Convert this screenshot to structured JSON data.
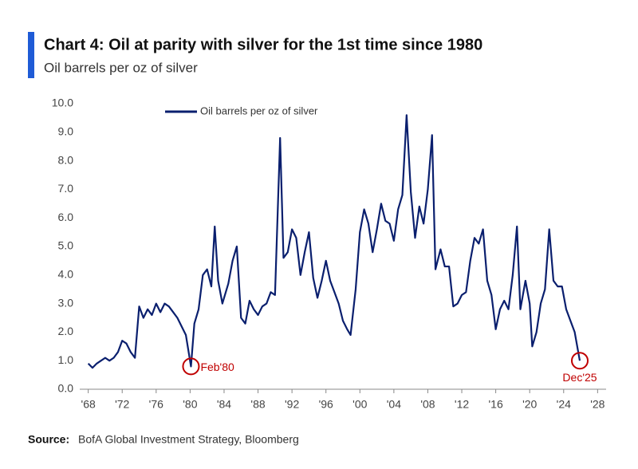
{
  "chart_data": {
    "type": "line",
    "title": "Chart 4: Oil at parity with silver for the 1st time since 1980",
    "subtitle": "Oil barrels per oz of silver",
    "source_label": "Source:",
    "source": "BofA Global Investment Strategy, Bloomberg",
    "legend": "top-center",
    "xlim": [
      1967,
      2029
    ],
    "ylim": [
      0,
      10
    ],
    "xticks": [
      {
        "value": 1968,
        "label": "'68"
      },
      {
        "value": 1972,
        "label": "'72"
      },
      {
        "value": 1976,
        "label": "'76"
      },
      {
        "value": 1980,
        "label": "'80"
      },
      {
        "value": 1984,
        "label": "'84"
      },
      {
        "value": 1988,
        "label": "'88"
      },
      {
        "value": 1992,
        "label": "'92"
      },
      {
        "value": 1996,
        "label": "'96"
      },
      {
        "value": 2000,
        "label": "'00"
      },
      {
        "value": 2004,
        "label": "'04"
      },
      {
        "value": 2008,
        "label": "'08"
      },
      {
        "value": 2012,
        "label": "'12"
      },
      {
        "value": 2016,
        "label": "'16"
      },
      {
        "value": 2020,
        "label": "'20"
      },
      {
        "value": 2024,
        "label": "'24"
      },
      {
        "value": 2028,
        "label": "'28"
      }
    ],
    "yticks": [
      {
        "value": 0,
        "label": "0.0"
      },
      {
        "value": 1,
        "label": "1.0"
      },
      {
        "value": 2,
        "label": "2.0"
      },
      {
        "value": 3,
        "label": "3.0"
      },
      {
        "value": 4,
        "label": "4.0"
      },
      {
        "value": 5,
        "label": "5.0"
      },
      {
        "value": 6,
        "label": "6.0"
      },
      {
        "value": 7,
        "label": "7.0"
      },
      {
        "value": 8,
        "label": "8.0"
      },
      {
        "value": 9,
        "label": "9.0"
      },
      {
        "value": 10,
        "label": "10.0"
      }
    ],
    "x": [
      1968,
      1968.5,
      1969,
      1969.5,
      1970,
      1970.5,
      1971,
      1971.5,
      1972,
      1972.5,
      1973,
      1973.5,
      1974,
      1974.5,
      1975,
      1975.5,
      1976,
      1976.5,
      1977,
      1977.5,
      1978,
      1978.5,
      1979,
      1979.5,
      1980.1,
      1980.5,
      1981,
      1981.5,
      1982,
      1982.5,
      1982.9,
      1983.3,
      1983.8,
      1984.5,
      1985,
      1985.5,
      1986,
      1986.5,
      1987,
      1987.5,
      1988,
      1988.5,
      1989,
      1989.5,
      1990,
      1990.6,
      1991,
      1991.5,
      1992,
      1992.5,
      1993,
      1993.5,
      1994,
      1994.5,
      1995,
      1995.5,
      1996,
      1996.5,
      1997,
      1997.5,
      1998,
      1998.5,
      1998.9,
      1999.5,
      2000,
      2000.5,
      2001,
      2001.5,
      2002,
      2002.5,
      2003,
      2003.5,
      2004,
      2004.5,
      2005,
      2005.5,
      2006,
      2006.5,
      2007,
      2007.5,
      2008,
      2008.5,
      2008.9,
      2009.5,
      2010,
      2010.5,
      2011,
      2011.5,
      2012,
      2012.5,
      2013,
      2013.5,
      2014,
      2014.5,
      2015,
      2015.5,
      2016,
      2016.5,
      2017,
      2017.5,
      2018,
      2018.5,
      2018.9,
      2019.5,
      2020,
      2020.3,
      2020.8,
      2021.3,
      2021.8,
      2022.3,
      2022.8,
      2023.3,
      2023.8,
      2024.3,
      2024.8,
      2025.3,
      2025.9
    ],
    "series": [
      {
        "name": "Oil barrels per oz of silver",
        "color": "#0a1f6e",
        "values": [
          0.9,
          0.75,
          0.9,
          1.0,
          1.1,
          1.0,
          1.1,
          1.3,
          1.7,
          1.6,
          1.3,
          1.1,
          2.9,
          2.5,
          2.8,
          2.6,
          3.0,
          2.7,
          3.0,
          2.9,
          2.7,
          2.5,
          2.2,
          1.9,
          0.8,
          2.3,
          2.8,
          4.0,
          4.2,
          3.6,
          5.7,
          3.8,
          3.0,
          3.7,
          4.5,
          5.0,
          2.5,
          2.3,
          3.1,
          2.8,
          2.6,
          2.9,
          3.0,
          3.4,
          3.3,
          8.8,
          4.6,
          4.8,
          5.6,
          5.3,
          4.0,
          4.8,
          5.5,
          3.9,
          3.2,
          3.8,
          4.5,
          3.8,
          3.4,
          3.0,
          2.4,
          2.1,
          1.9,
          3.5,
          5.5,
          6.3,
          5.8,
          4.8,
          5.6,
          6.5,
          5.9,
          5.8,
          5.2,
          6.3,
          6.8,
          9.6,
          6.9,
          5.3,
          6.4,
          5.8,
          7.0,
          8.9,
          4.2,
          4.9,
          4.3,
          4.3,
          2.9,
          3.0,
          3.3,
          3.4,
          4.5,
          5.3,
          5.1,
          5.6,
          3.8,
          3.3,
          2.1,
          2.8,
          3.1,
          2.8,
          4.0,
          5.7,
          2.8,
          3.8,
          3.0,
          1.5,
          2.0,
          3.0,
          3.5,
          5.6,
          3.8,
          3.6,
          3.6,
          2.8,
          2.4,
          2.0,
          1.0
        ]
      }
    ],
    "annotations": [
      {
        "text": "Feb'80",
        "x": 1980.1,
        "y": 0.8,
        "position": "right",
        "color": "#c00000"
      },
      {
        "text": "Dec'25",
        "x": 2025.9,
        "y": 1.0,
        "position": "below",
        "color": "#c00000"
      }
    ]
  }
}
